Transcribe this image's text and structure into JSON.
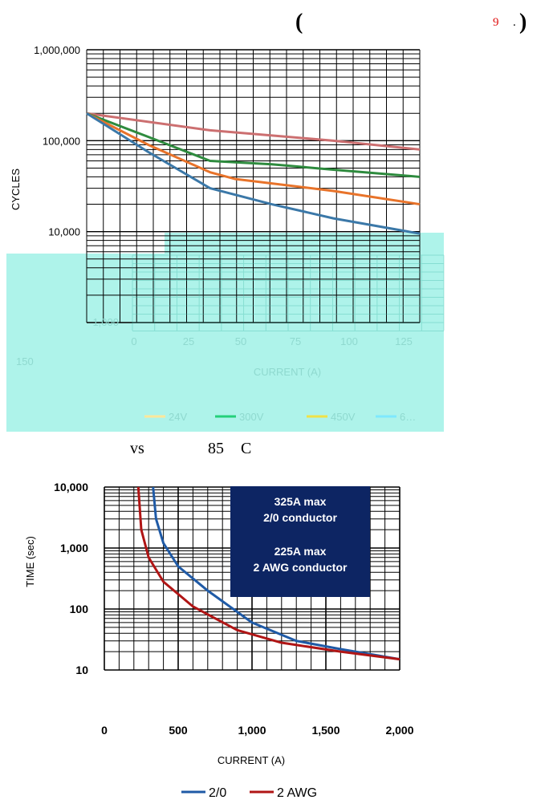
{
  "header": {
    "paren_open": "(",
    "number": "9",
    "dot": ".",
    "paren_close": ")"
  },
  "caption_middle": {
    "vs": "vs",
    "temp": "85",
    "unit": "C"
  },
  "chart_data": [
    {
      "type": "line",
      "xlabel": "CURRENT (A)",
      "ylabel": "CYCLES",
      "log_y": true,
      "ylim": [
        1000,
        1000000
      ],
      "xlim": [
        0,
        150
      ],
      "x_ticks": [
        "0",
        "25",
        "50",
        "75",
        "100",
        "125",
        "150"
      ],
      "y_ticks": [
        "1,000",
        "10,000",
        "100,000",
        "1,000,000"
      ],
      "grid": true,
      "legend": [
        "24V",
        "300V",
        "450V",
        "6…"
      ],
      "series": [
        {
          "color": "#cc6f70",
          "x": [
            0,
            50,
            100,
            135
          ],
          "y": [
            200000,
            130000,
            100000,
            80000
          ]
        },
        {
          "color": "#2e8b3e",
          "x": [
            0,
            25,
            50,
            75,
            100,
            135
          ],
          "y": [
            200000,
            110000,
            60000,
            55000,
            48000,
            40000
          ]
        },
        {
          "color": "#e8732a",
          "x": [
            0,
            25,
            50,
            60,
            100,
            135
          ],
          "y": [
            200000,
            90000,
            45000,
            38000,
            28000,
            20000
          ]
        },
        {
          "color": "#3b78a8",
          "x": [
            0,
            25,
            50,
            75,
            100,
            135
          ],
          "y": [
            200000,
            75000,
            30000,
            20000,
            14000,
            9500
          ]
        }
      ]
    },
    {
      "type": "line",
      "xlabel": "CURRENT (A)",
      "ylabel": "TIME (sec)",
      "log_y": true,
      "ylim": [
        10,
        10000
      ],
      "xlim": [
        0,
        2000
      ],
      "x_ticks": [
        "0",
        "500",
        "1,000",
        "1,500",
        "2,000"
      ],
      "y_ticks": [
        "10",
        "100",
        "1,000",
        "10,000"
      ],
      "grid": true,
      "annotation": [
        "325A max",
        "2/0 conductor",
        "",
        "225A max",
        "2 AWG conductor"
      ],
      "legend": [
        "2/0",
        "2 AWG"
      ],
      "series": [
        {
          "name": "2/0",
          "color": "#1f5aa6",
          "x": [
            330,
            350,
            400,
            500,
            700,
            1000,
            1300,
            1600,
            2000
          ],
          "y": [
            10000,
            3000,
            1200,
            500,
            200,
            60,
            30,
            22,
            15
          ]
        },
        {
          "name": "2 AWG",
          "color": "#b01515",
          "x": [
            230,
            250,
            300,
            400,
            600,
            900,
            1200,
            1600,
            2000
          ],
          "y": [
            10000,
            2000,
            700,
            280,
            110,
            45,
            28,
            20,
            15
          ]
        }
      ]
    }
  ]
}
